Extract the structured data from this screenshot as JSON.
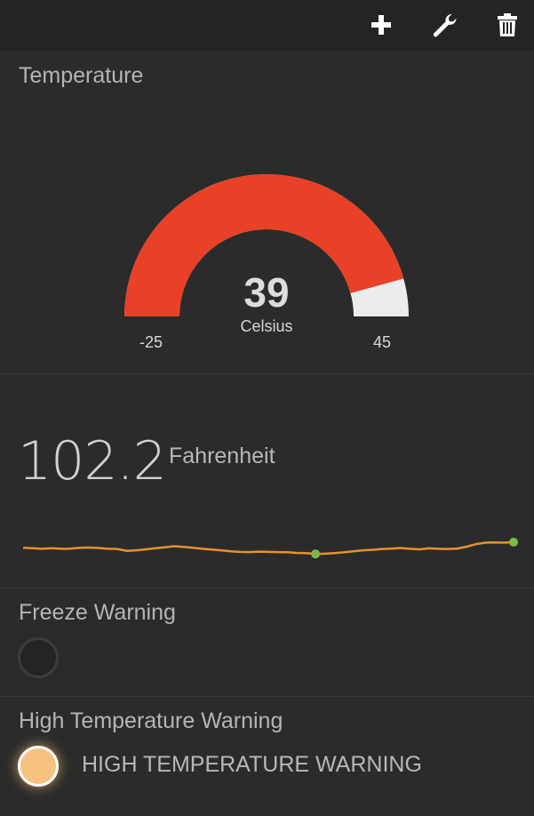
{
  "toolbar": {
    "icons": [
      "plus-icon",
      "wrench-icon",
      "trash-icon"
    ]
  },
  "temperature": {
    "title": "Temperature",
    "value": "39",
    "unit": "Celsius",
    "min": "-25",
    "max": "45",
    "value_num": 39,
    "min_num": -25,
    "max_num": 45,
    "fill_color": "#e84127",
    "track_color": "#ececec"
  },
  "fahrenheit": {
    "value": "102.2",
    "unit": "Fahrenheit",
    "sparkline": {
      "line_color": "#e8922a",
      "marker_color": "#7db84a",
      "points": [
        100.8,
        100.75,
        100.7,
        100.75,
        100.7,
        100.72,
        100.8,
        100.82,
        100.78,
        100.7,
        100.68,
        100.5,
        100.55,
        100.65,
        100.75,
        100.85,
        100.95,
        100.88,
        100.8,
        100.7,
        100.62,
        100.55,
        100.45,
        100.4,
        100.38,
        100.42,
        100.4,
        100.38,
        100.36,
        100.3,
        100.28,
        100.2,
        100.22,
        100.28,
        100.35,
        100.45,
        100.55,
        100.6,
        100.68,
        100.72,
        100.78,
        100.7,
        100.65,
        100.74,
        100.7,
        100.68,
        100.72,
        100.9,
        101.15,
        101.3,
        101.32,
        101.3,
        101.35
      ],
      "min_marker_index": 31,
      "last_marker_index": 52
    }
  },
  "freeze": {
    "title": "Freeze Warning",
    "state": "off"
  },
  "high_temp": {
    "title": "High Temperature Warning",
    "label": "HIGH TEMPERATURE WARNING",
    "state": "on"
  }
}
